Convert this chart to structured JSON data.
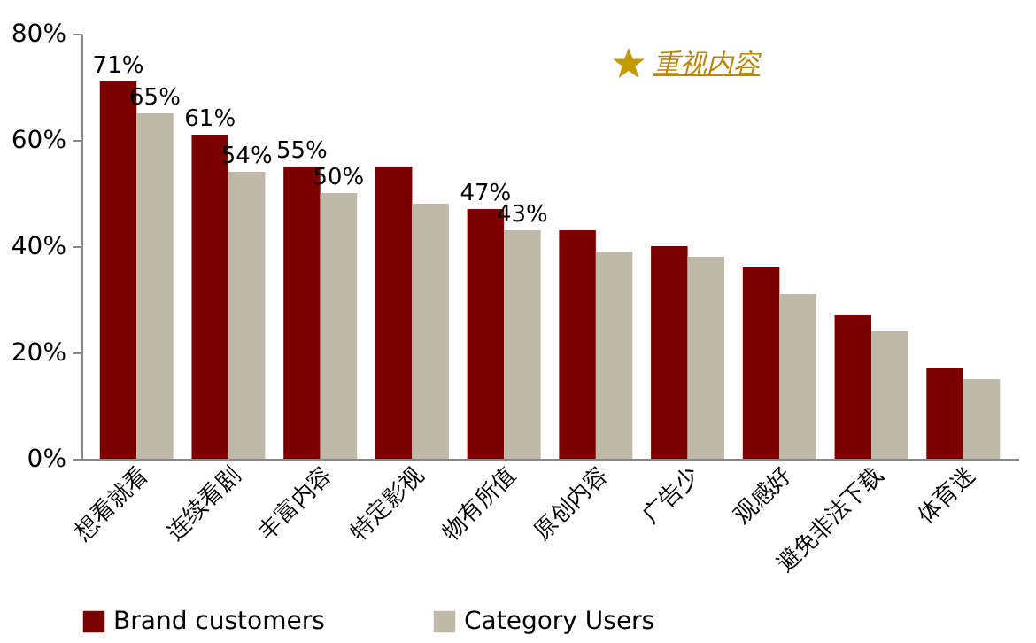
{
  "chart_data": {
    "type": "bar",
    "categories": [
      "想看就看",
      "连续看剧",
      "丰富内容",
      "特定影视",
      "物有所值",
      "原创内容",
      "广告少",
      "观感好",
      "避免非法下载",
      "体育迷"
    ],
    "series": [
      {
        "name": "Brand customers",
        "color": "#7b0000",
        "values": [
          71,
          61,
          55,
          55,
          47,
          43,
          40,
          36,
          27,
          17
        ],
        "value_labels": [
          "71%",
          "61%",
          "55%",
          null,
          "47%",
          null,
          null,
          null,
          null,
          null
        ]
      },
      {
        "name": "Category Users",
        "color": "#bfbaa8",
        "values": [
          65,
          54,
          50,
          48,
          43,
          39,
          38,
          31,
          24,
          15
        ],
        "value_labels": [
          "65%",
          "54%",
          "50%",
          null,
          "43%",
          null,
          null,
          null,
          null,
          null
        ]
      }
    ],
    "ylim": [
      0,
      80
    ],
    "yticks": [
      {
        "value": 0,
        "label": "0%"
      },
      {
        "value": 20,
        "label": "20%"
      },
      {
        "value": 40,
        "label": "40%"
      },
      {
        "value": 60,
        "label": "60%"
      },
      {
        "value": 80,
        "label": "80%"
      }
    ],
    "grid": false,
    "legend": "bottom",
    "annotations": [
      "重视内容"
    ]
  }
}
